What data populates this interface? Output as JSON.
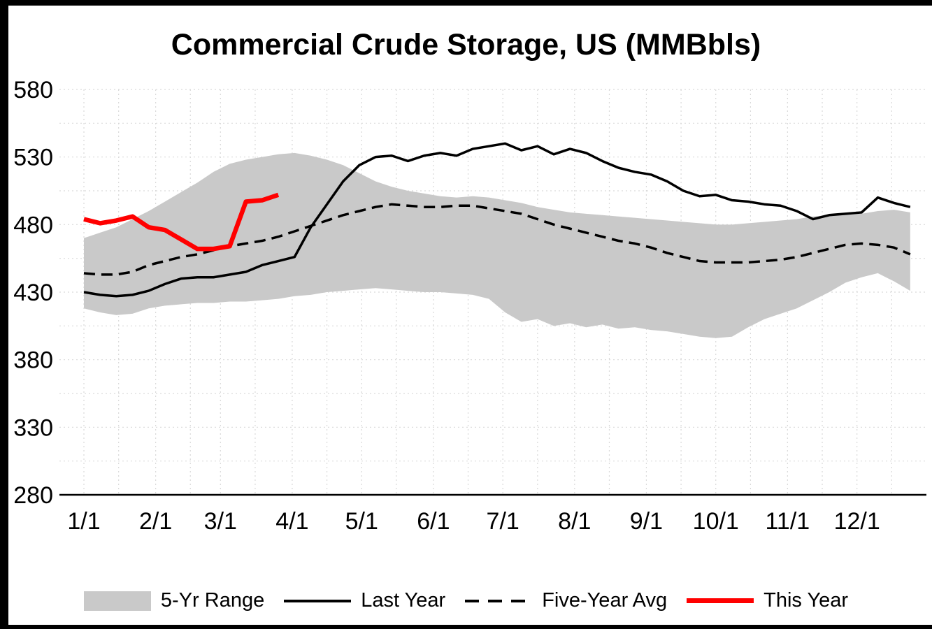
{
  "chart_data": {
    "type": "line",
    "title": "Commercial Crude Storage, US (MMBbls)",
    "ylabel": "",
    "xlabel": "",
    "ylim": [
      280,
      580
    ],
    "yticks": [
      280,
      330,
      380,
      430,
      480,
      530,
      580
    ],
    "xtick_labels": [
      "1/1",
      "2/1",
      "3/1",
      "4/1",
      "5/1",
      "6/1",
      "7/1",
      "8/1",
      "9/1",
      "10/1",
      "11/1",
      "12/1"
    ],
    "xtick_days": [
      0,
      31,
      59,
      90,
      120,
      151,
      181,
      212,
      243,
      273,
      304,
      334
    ],
    "x_domain_days": [
      0,
      364
    ],
    "week_step_days": 7,
    "grid": {
      "color": "#d9d9d9",
      "style": "dotted",
      "y_step": 25
    },
    "axis_color": "#000000",
    "background": "#ffffff",
    "series": [
      {
        "name": "5-Yr Range",
        "type": "band",
        "color": "#c9c9c9",
        "upper": [
          470,
          474,
          478,
          484,
          490,
          497,
          504,
          511,
          519,
          525,
          528,
          530,
          532,
          533,
          531,
          528,
          524,
          518,
          512,
          508,
          505,
          503,
          501,
          500,
          501,
          500,
          498,
          496,
          493,
          491,
          489,
          488,
          487,
          486,
          485,
          484,
          483,
          482,
          481,
          480,
          480,
          481,
          482,
          483,
          484,
          486,
          487,
          488,
          488,
          490,
          491,
          489
        ],
        "lower": [
          418,
          415,
          413,
          414,
          418,
          420,
          421,
          422,
          422,
          423,
          423,
          424,
          425,
          427,
          428,
          430,
          431,
          432,
          433,
          432,
          431,
          430,
          430,
          429,
          428,
          425,
          415,
          408,
          410,
          405,
          407,
          404,
          406,
          403,
          404,
          402,
          401,
          399,
          397,
          396,
          397,
          404,
          410,
          414,
          418,
          424,
          430,
          437,
          441,
          444,
          438,
          431
        ]
      },
      {
        "name": "Last Year",
        "type": "line",
        "color": "#000000",
        "width": 3.5,
        "dash": null,
        "values": [
          430,
          428,
          427,
          428,
          431,
          436,
          440,
          441,
          441,
          443,
          445,
          450,
          453,
          456,
          478,
          495,
          512,
          524,
          530,
          531,
          527,
          531,
          533,
          531,
          536,
          538,
          540,
          535,
          538,
          532,
          536,
          533,
          527,
          522,
          519,
          517,
          512,
          505,
          501,
          502,
          498,
          497,
          495,
          494,
          490,
          484,
          487,
          488,
          489,
          500,
          496,
          493
        ]
      },
      {
        "name": "Five-Year Avg",
        "type": "line",
        "color": "#000000",
        "width": 3.5,
        "dash": "16 9",
        "values": [
          444,
          443,
          443,
          445,
          450,
          453,
          456,
          458,
          461,
          464,
          466,
          468,
          471,
          475,
          479,
          483,
          487,
          490,
          493,
          495,
          494,
          493,
          493,
          494,
          494,
          492,
          490,
          488,
          484,
          480,
          477,
          474,
          471,
          468,
          466,
          463,
          459,
          456,
          453,
          452,
          452,
          452,
          453,
          454,
          456,
          459,
          462,
          465,
          466,
          465,
          463,
          458
        ]
      },
      {
        "name": "This Year",
        "type": "line",
        "color": "#ff0000",
        "width": 6.5,
        "dash": null,
        "values": [
          484,
          481,
          483,
          486,
          478,
          476,
          469,
          462,
          462,
          464,
          497,
          498,
          502
        ]
      }
    ],
    "legend": [
      {
        "label": "5-Yr Range",
        "swatch": "band"
      },
      {
        "label": "Last Year",
        "swatch": "solid-line"
      },
      {
        "label": "Five-Year Avg",
        "swatch": "dashed-line"
      },
      {
        "label": "This Year",
        "swatch": "red-line"
      }
    ],
    "legend_position": "bottom"
  }
}
